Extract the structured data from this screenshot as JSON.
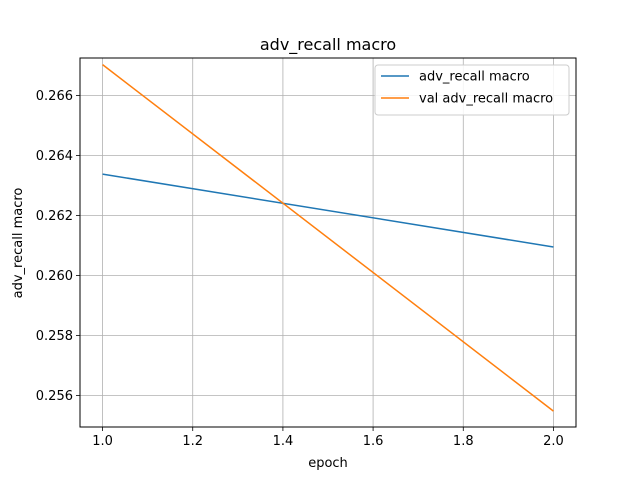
{
  "chart_data": {
    "type": "line",
    "title": "adv_recall macro",
    "xlabel": "epoch",
    "ylabel": "adv_recall macro",
    "xlim": [
      0.95,
      2.05
    ],
    "ylim": [
      0.25495,
      0.26725
    ],
    "x_ticks": [
      1.0,
      1.2,
      1.4,
      1.6,
      1.8,
      2.0
    ],
    "x_tick_labels": [
      "1.0",
      "1.2",
      "1.4",
      "1.6",
      "1.8",
      "2.0"
    ],
    "y_ticks": [
      0.256,
      0.258,
      0.26,
      0.262,
      0.264,
      0.266
    ],
    "y_tick_labels": [
      "0.256",
      "0.258",
      "0.260",
      "0.262",
      "0.264",
      "0.266"
    ],
    "grid": true,
    "legend_position": "top-right",
    "series": [
      {
        "name": "adv_recall macro",
        "color": "#1f77b4",
        "x": [
          1.0,
          2.0
        ],
        "y": [
          0.26338,
          0.26095
        ]
      },
      {
        "name": "val adv_recall macro",
        "color": "#ff7f0e",
        "x": [
          1.0,
          2.0
        ],
        "y": [
          0.26703,
          0.25548
        ]
      }
    ]
  }
}
